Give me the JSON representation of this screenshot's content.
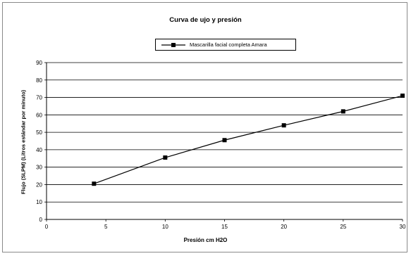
{
  "chart_data": {
    "type": "line",
    "title": "Curva de  ujo y presión",
    "xlabel": "Presión cm H2O",
    "ylabel": "Flujo (SLPM) (Litros estándar por minuto)",
    "xlim": [
      0,
      30
    ],
    "ylim": [
      0,
      90
    ],
    "x_ticks": [
      "0",
      "5",
      "10",
      "15",
      "20",
      "25",
      "30"
    ],
    "y_ticks": [
      "0",
      "10",
      "20",
      "30",
      "40",
      "50",
      "60",
      "70",
      "80",
      "90"
    ],
    "grid": "horizontal",
    "legend_position": "top",
    "series": [
      {
        "name": "Mascarilla facial completa Amara",
        "color": "#000000",
        "marker": "square",
        "x": [
          4,
          10,
          15,
          20,
          25,
          30
        ],
        "y": [
          20.5,
          35.5,
          45.5,
          54,
          62,
          71
        ]
      }
    ]
  }
}
